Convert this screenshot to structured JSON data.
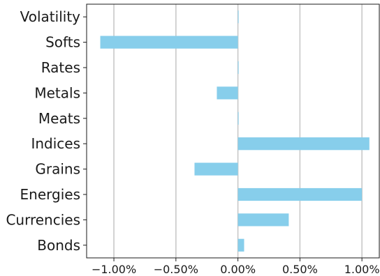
{
  "chart_data": {
    "type": "bar",
    "orientation": "horizontal",
    "title": "",
    "xlabel": "",
    "ylabel": "",
    "categories": [
      "Volatility",
      "Softs",
      "Rates",
      "Metals",
      "Meats",
      "Indices",
      "Grains",
      "Energies",
      "Currencies",
      "Bonds"
    ],
    "values": [
      0.0,
      -1.11,
      0.0,
      -0.17,
      0.0,
      1.06,
      -0.35,
      1.0,
      0.41,
      0.05
    ],
    "xlim": [
      -1.22,
      1.14
    ],
    "xticks": [
      -1.0,
      -0.5,
      0.0,
      0.5,
      1.0
    ],
    "xtick_labels": [
      "−1.00%",
      "−0.50%",
      "0.00%",
      "0.50%",
      "1.00%"
    ],
    "grid": "vertical",
    "legend": "none",
    "bar_color": "#87ceeb"
  }
}
